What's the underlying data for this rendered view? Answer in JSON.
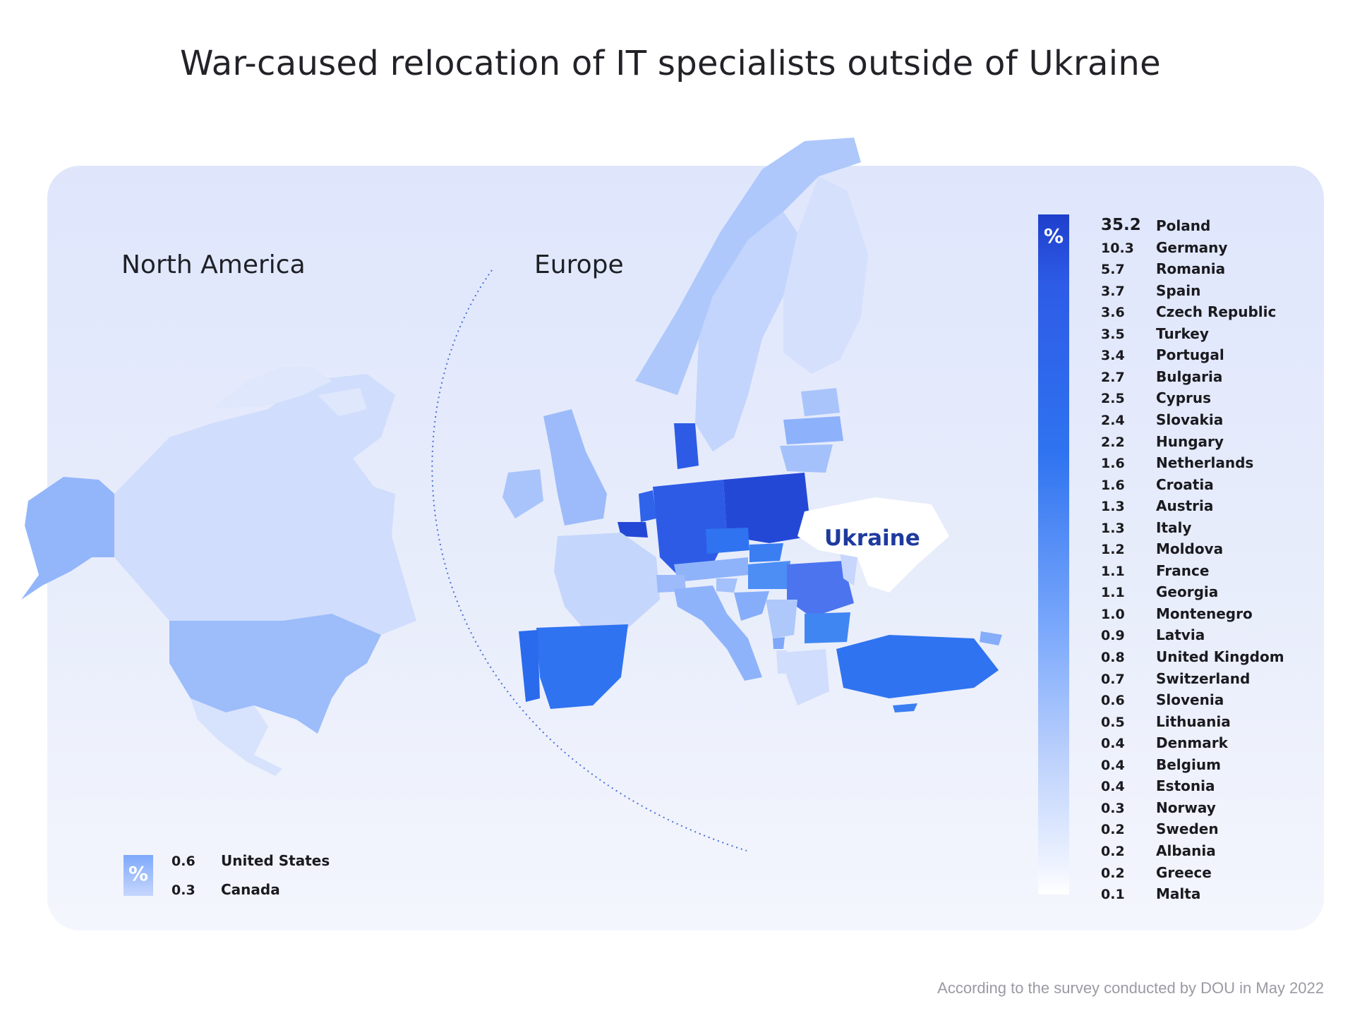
{
  "title": "War-caused relocation of IT specialists outside of Ukraine",
  "regions": {
    "north_america": "North America",
    "europe": "Europe"
  },
  "ukraine_label": "Ukraine",
  "legend_symbol": "%",
  "europe_legend": [
    {
      "value": "35.2",
      "country": "Poland"
    },
    {
      "value": "10.3",
      "country": "Germany"
    },
    {
      "value": "5.7",
      "country": "Romania"
    },
    {
      "value": "3.7",
      "country": "Spain"
    },
    {
      "value": "3.6",
      "country": "Czech Republic"
    },
    {
      "value": "3.5",
      "country": "Turkey"
    },
    {
      "value": "3.4",
      "country": "Portugal"
    },
    {
      "value": "2.7",
      "country": "Bulgaria"
    },
    {
      "value": "2.5",
      "country": "Cyprus"
    },
    {
      "value": "2.4",
      "country": "Slovakia"
    },
    {
      "value": "2.2",
      "country": "Hungary"
    },
    {
      "value": "1.6",
      "country": "Netherlands"
    },
    {
      "value": "1.6",
      "country": "Croatia"
    },
    {
      "value": "1.3",
      "country": "Austria"
    },
    {
      "value": "1.3",
      "country": "Italy"
    },
    {
      "value": "1.2",
      "country": "Moldova"
    },
    {
      "value": "1.1",
      "country": "France"
    },
    {
      "value": "1.1",
      "country": "Georgia"
    },
    {
      "value": "1.0",
      "country": "Montenegro"
    },
    {
      "value": "0.9",
      "country": "Latvia"
    },
    {
      "value": "0.8",
      "country": "United Kingdom"
    },
    {
      "value": "0.7",
      "country": "Switzerland"
    },
    {
      "value": "0.6",
      "country": "Slovenia"
    },
    {
      "value": "0.5",
      "country": "Lithuania"
    },
    {
      "value": "0.4",
      "country": "Denmark"
    },
    {
      "value": "0.4",
      "country": "Belgium"
    },
    {
      "value": "0.4",
      "country": "Estonia"
    },
    {
      "value": "0.3",
      "country": "Norway"
    },
    {
      "value": "0.2",
      "country": "Sweden"
    },
    {
      "value": "0.2",
      "country": "Albania"
    },
    {
      "value": "0.2",
      "country": "Greece"
    },
    {
      "value": "0.1",
      "country": "Malta"
    }
  ],
  "north_america_legend": [
    {
      "value": "0.6",
      "country": "United States"
    },
    {
      "value": "0.3",
      "country": "Canada"
    }
  ],
  "colors": {
    "top": "#1e3fcc",
    "high": "#2d5be6",
    "mid": "#2f73f0",
    "light": "#77a6fb",
    "pale": "#bcd1fc",
    "palest": "#d6e1fc",
    "ukraine_label": "#1e3a9e"
  },
  "footnote": "According to the survey conducted by DOU in May 2022"
}
